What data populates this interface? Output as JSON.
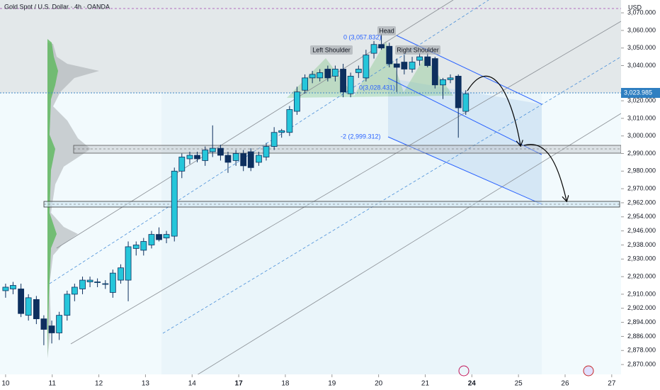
{
  "chart_data": {
    "type": "candlestick",
    "title": "Gold Spot / U.S. Dollar · 4h · OANDA",
    "currency": "USD",
    "last_price_label": "3,023.985",
    "annotations": {
      "head": "Head",
      "left_shoulder": "Left Shoulder",
      "right_shoulder": "Right Shoulder",
      "fib_top": "0 (3,057.832)",
      "fib_mid": "0(3,028.431)",
      "fib_low": "-2 (2,999.312)"
    },
    "colors": {
      "up": "#26c6da",
      "down": "#0d2f5e"
    },
    "xlim": [
      -0.12,
      13.2
    ],
    "xticks": [
      {
        "value": 0,
        "label": "10"
      },
      {
        "value": 1,
        "label": "11"
      },
      {
        "value": 2,
        "label": "12"
      },
      {
        "value": 3,
        "label": "13"
      },
      {
        "value": 4,
        "label": "14"
      },
      {
        "value": 5,
        "label": "17"
      },
      {
        "value": 6,
        "label": "18"
      },
      {
        "value": 7,
        "label": "19"
      },
      {
        "value": 8,
        "label": "20"
      },
      {
        "value": 9,
        "label": "21"
      },
      {
        "value": 10,
        "label": "24"
      },
      {
        "value": 11,
        "label": "25"
      },
      {
        "value": 12,
        "label": "26"
      },
      {
        "value": 13,
        "label": "27"
      }
    ],
    "ylim": [
      2864.4,
      3077.3
    ],
    "yticks": [
      {
        "value": 3070,
        "label": "3,070.000"
      },
      {
        "value": 3060,
        "label": "3,060.000"
      },
      {
        "value": 3050,
        "label": "3,050.000"
      },
      {
        "value": 3040,
        "label": "3,040.000"
      },
      {
        "value": 3020,
        "label": "3,020.000"
      },
      {
        "value": 3010,
        "label": "3,010.000"
      },
      {
        "value": 3000,
        "label": "3,000.000"
      },
      {
        "value": 2990,
        "label": "2,990.000"
      },
      {
        "value": 2980,
        "label": "2,980.000"
      },
      {
        "value": 2970,
        "label": "2,970.000"
      },
      {
        "value": 2962,
        "label": "2,962.000"
      },
      {
        "value": 2954,
        "label": "2,954.000"
      },
      {
        "value": 2946,
        "label": "2,946.000"
      },
      {
        "value": 2938,
        "label": "2,938.000"
      },
      {
        "value": 2930,
        "label": "2,930.000"
      },
      {
        "value": 2920,
        "label": "2,920.000"
      },
      {
        "value": 2910,
        "label": "2,910.000"
      },
      {
        "value": 2902,
        "label": "2,902.000"
      },
      {
        "value": 2894,
        "label": "2,894.000"
      },
      {
        "value": 2886,
        "label": "2,886.000"
      },
      {
        "value": 2878,
        "label": "2,878.000"
      },
      {
        "value": 2870,
        "label": "2,870.000"
      }
    ],
    "x": [
      0,
      0.16,
      0.33,
      0.49,
      0.66,
      0.82,
      0.99,
      1.15,
      1.32,
      1.48,
      1.65,
      1.81,
      1.97,
      2.14,
      2.3,
      2.47,
      2.63,
      2.8,
      2.96,
      3.13,
      3.29,
      3.45,
      3.62,
      3.78,
      3.95,
      4.11,
      4.28,
      4.44,
      4.61,
      4.77,
      4.94,
      5.1,
      5.26,
      5.43,
      5.59,
      5.76,
      5.92,
      6.09,
      6.25,
      6.42,
      6.58,
      6.74,
      6.91,
      7.07,
      7.24,
      7.4,
      7.57,
      7.73,
      7.9,
      8.06,
      8.23,
      8.39,
      8.55,
      8.72,
      8.88,
      9.05,
      9.21,
      9.38,
      9.54,
      9.71,
      9.87
    ],
    "open": [
      2912,
      2913,
      2913,
      2898,
      2907,
      2896,
      2892,
      2888,
      2898,
      2910,
      2913,
      2917,
      2917,
      2916,
      2911,
      2918,
      2918,
      2936,
      2935,
      2938,
      2944,
      2942,
      2943,
      2980,
      2987,
      2989,
      2986,
      2991,
      2993,
      2989,
      2986,
      2990,
      2991,
      2985,
      2988,
      2994,
      3002,
      3002,
      3014,
      3026,
      3033,
      3033,
      3038,
      3034,
      3038,
      3024,
      3036,
      3033,
      3047,
      3052,
      3051,
      3041,
      3042,
      3038,
      3043,
      3045,
      3044,
      3029,
      3032,
      3034,
      3014
    ],
    "high": [
      2916,
      2917,
      2916,
      2910,
      2909,
      2898,
      2895,
      2900,
      2912,
      2916,
      2920,
      2920,
      2919,
      2918,
      2924,
      2927,
      2940,
      2940,
      2942,
      2946,
      2948,
      2946,
      2982,
      2990,
      2991,
      2991,
      2994,
      3006,
      2995,
      2991,
      2992,
      2992,
      2993,
      2991,
      2996,
      3005,
      3004,
      3017,
      3028,
      3035,
      3037,
      3038,
      3040,
      3040,
      3041,
      3036,
      3040,
      3049,
      3054,
      3057.8,
      3053,
      3044,
      3046,
      3045,
      3047,
      3047,
      3045,
      3033,
      3035,
      3035,
      3026
    ],
    "low": [
      2908,
      2910,
      2897,
      2895,
      2893,
      2881,
      2882,
      2884,
      2895,
      2906,
      2910,
      2914,
      2914,
      2913,
      2908,
      2916,
      2906,
      2932,
      2932,
      2936,
      2940,
      2939,
      2940,
      2976,
      2984,
      2985,
      2983,
      2988,
      2986,
      2979,
      2983,
      2980,
      2980,
      2983,
      2986,
      2992,
      2999,
      3000,
      3012,
      3024,
      3030,
      3031,
      3031,
      3031,
      3022,
      3022,
      3033,
      3031,
      3044,
      3049,
      3039,
      3025,
      3035,
      3036,
      3040,
      3039,
      3027,
      3021,
      3030,
      2999,
      3012
    ],
    "close": [
      2914,
      2915,
      2899,
      2908,
      2896,
      2890,
      2888,
      2898,
      2910,
      2914,
      2918,
      2918,
      2917,
      2916,
      2922,
      2925,
      2937,
      2938,
      2940,
      2944,
      2941,
      2944,
      2980,
      2988,
      2989,
      2987,
      2992,
      2993,
      2989,
      2985,
      2990,
      2983,
      2982,
      2989,
      2994,
      3002,
      3003,
      3015,
      3025,
      3033,
      3035,
      3036,
      3033,
      3038,
      3025,
      3034,
      3038,
      3046,
      3052,
      3050,
      3041,
      3039,
      3038,
      3042,
      3045,
      3040,
      3029,
      3032,
      3033,
      3016,
      3024
    ]
  }
}
